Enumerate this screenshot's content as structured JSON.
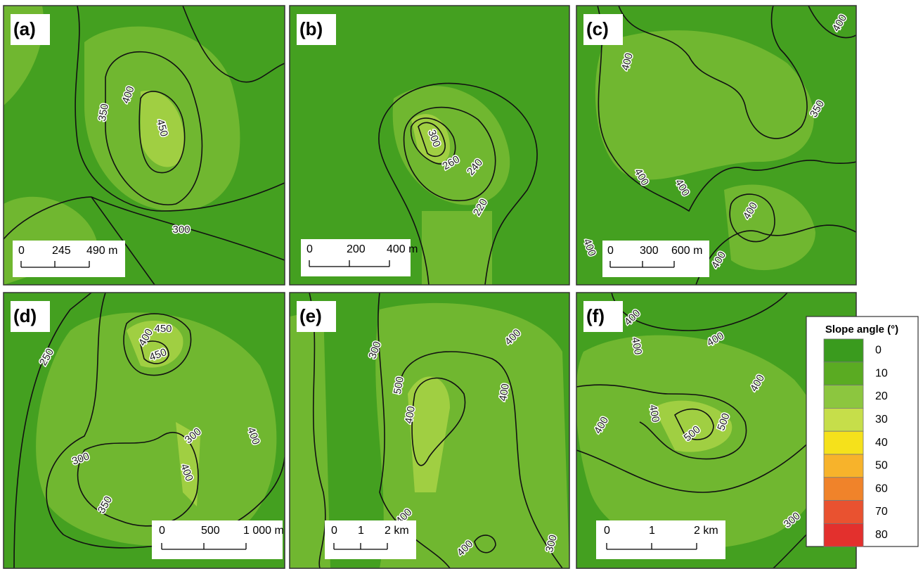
{
  "panels": [
    {
      "label": "(a)",
      "contour_labels": [
        "350",
        "400",
        "450",
        "300"
      ],
      "scale_bar": [
        "0",
        "245",
        "490 m"
      ]
    },
    {
      "label": "(b)",
      "contour_labels": [
        "300",
        "260",
        "240",
        "220"
      ],
      "scale_bar": [
        "0",
        "200",
        "400 m"
      ]
    },
    {
      "label": "(c)",
      "contour_labels": [
        "400",
        "400",
        "350",
        "400",
        "400",
        "400",
        "400",
        "400"
      ],
      "scale_bar": [
        "0",
        "300",
        "600 m"
      ]
    },
    {
      "label": "(d)",
      "contour_labels": [
        "250",
        "400",
        "450",
        "450",
        "300",
        "300",
        "400",
        "400",
        "350"
      ],
      "scale_bar": [
        "0",
        "500",
        "1 000 m"
      ]
    },
    {
      "label": "(e)",
      "contour_labels": [
        "300",
        "500",
        "400",
        "400",
        "400",
        "400",
        "400",
        "300"
      ],
      "scale_bar": [
        "0",
        "1",
        "2 km"
      ]
    },
    {
      "label": "(f)",
      "contour_labels": [
        "400",
        "400",
        "400",
        "400",
        "400",
        "400",
        "500",
        "500",
        "300"
      ],
      "scale_bar": [
        "0",
        "1",
        "2 km"
      ]
    }
  ],
  "legend": {
    "title": "Slope angle (°)",
    "labels": [
      0,
      10,
      20,
      30,
      40,
      50,
      60,
      70,
      80
    ],
    "colors": [
      "#3a9b1e",
      "#5aab22",
      "#8cc63f",
      "#c6de4a",
      "#f5e11b",
      "#f7b32b",
      "#f0832a",
      "#e95230",
      "#e3302d"
    ]
  }
}
